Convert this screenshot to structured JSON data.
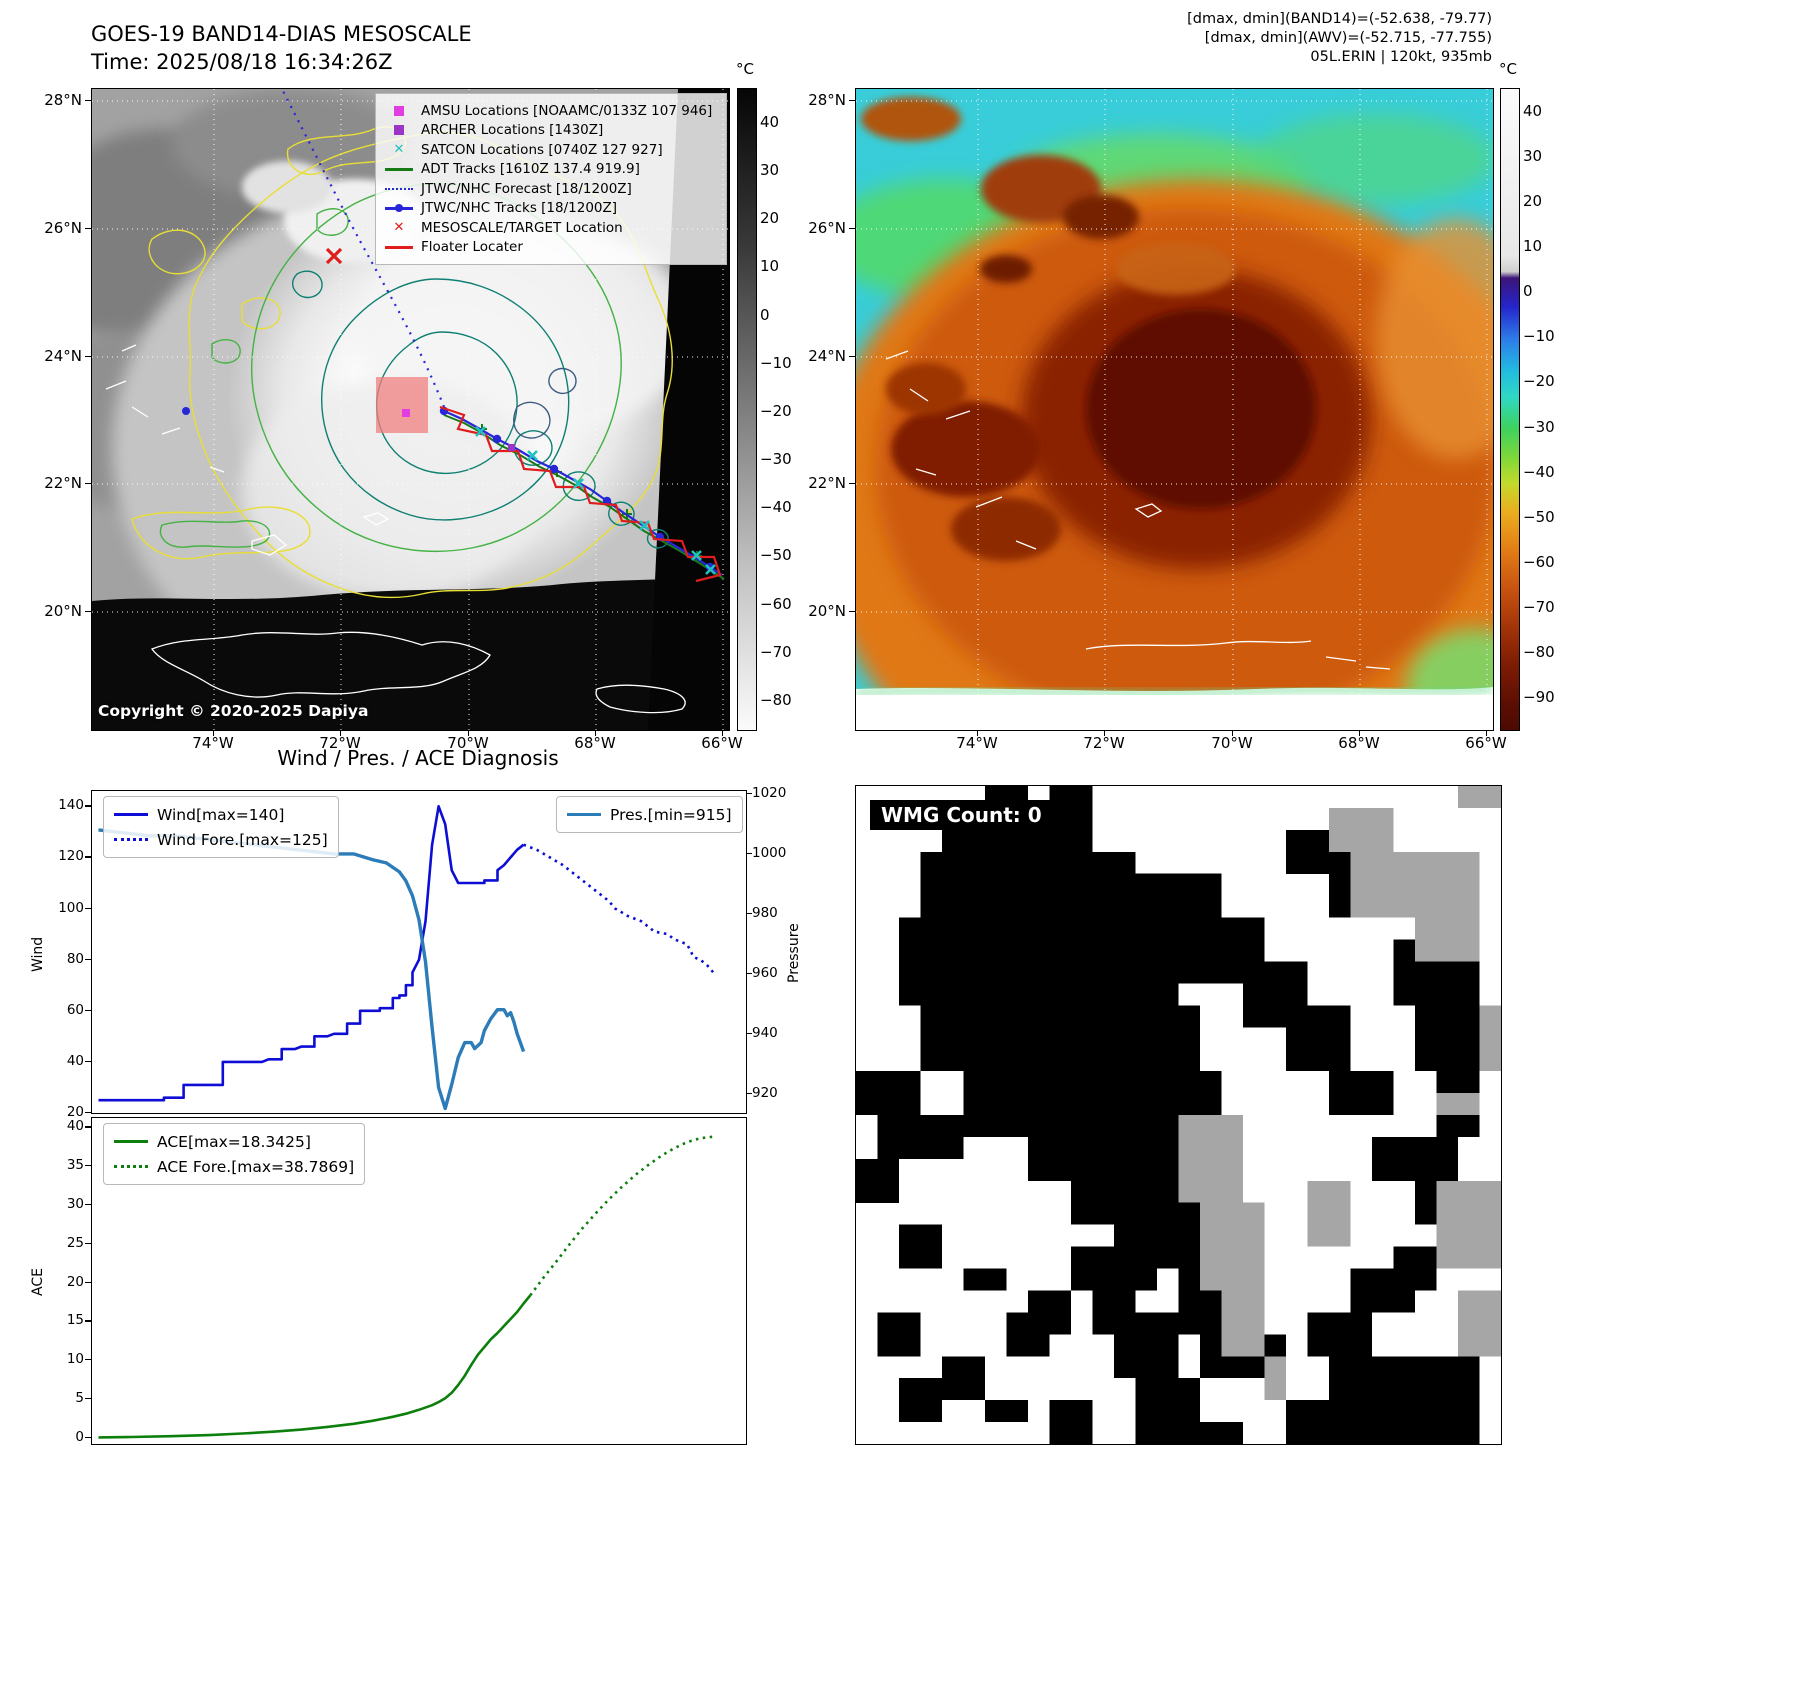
{
  "map_band14": {
    "title_line1": "GOES-19 BAND14-DIAS MESOSCALE",
    "title_line2": "Time: 2025/08/18 16:34:26Z",
    "copyright": "Copyright © 2020-2025 Dapiya",
    "lat_ticks": [
      "28°N",
      "26°N",
      "24°N",
      "22°N",
      "20°N"
    ],
    "lon_ticks": [
      "74°W",
      "72°W",
      "70°W",
      "68°W",
      "66°W"
    ],
    "colorbar": {
      "unit": "°C",
      "ticks": [
        40,
        30,
        20,
        10,
        0,
        -10,
        -20,
        -30,
        -40,
        -50,
        -60,
        -70,
        -80
      ]
    },
    "legend": [
      {
        "marker": "square",
        "color": "#e23de2",
        "label": "AMSU Locations [NOAAMC/0133Z 107 946]"
      },
      {
        "marker": "square",
        "color": "#9a35c8",
        "label": "ARCHER Locations [1430Z]"
      },
      {
        "marker": "x",
        "color": "#1fc2c2",
        "label": "SATCON Locations [0740Z 127 927]"
      },
      {
        "marker": "line",
        "color": "#167a16",
        "label": "ADT Tracks [1610Z 137.4 919.9]"
      },
      {
        "marker": "dotted",
        "color": "#2727d8",
        "label": "JTWC/NHC Forecast [18/1200Z]"
      },
      {
        "marker": "line-dot",
        "color": "#2727d8",
        "label": "JTWC/NHC Tracks [18/1200Z]"
      },
      {
        "marker": "x",
        "color": "#e01c1c",
        "label": "MESOSCALE/TARGET Location"
      },
      {
        "marker": "line",
        "color": "#e01c1c",
        "label": "Floater Locater"
      }
    ]
  },
  "map_awv": {
    "header_line1": "[dmax, dmin](BAND14)=(-52.638, -79.77)",
    "header_line2": "[dmax, dmin](AWV)=(-52.715, -77.755)",
    "header_line3": "05L.ERIN | 120kt, 935mb",
    "lat_ticks": [
      "28°N",
      "26°N",
      "24°N",
      "22°N",
      "20°N"
    ],
    "lon_ticks": [
      "74°W",
      "72°W",
      "70°W",
      "68°W",
      "66°W"
    ],
    "colorbar": {
      "unit": "°C",
      "ticks": [
        40,
        30,
        20,
        10,
        0,
        -10,
        -20,
        -30,
        -40,
        -50,
        -60,
        -70,
        -80,
        -90
      ]
    }
  },
  "wmg": {
    "label": "WMG Count: 0",
    "colors": {
      "black": "#000000",
      "gray": "#a6a6a6",
      "white": "#ffffff"
    }
  },
  "chart_data": [
    {
      "type": "line",
      "title": "Wind / Pres. / ACE Diagnosis",
      "xlabel": "",
      "ylabel": "Wind",
      "y2label": "Pressure",
      "ylim": [
        20,
        146
      ],
      "y2lim": [
        913.5,
        1021
      ],
      "yticks": [
        20,
        40,
        60,
        80,
        100,
        120,
        140
      ],
      "y2ticks": [
        920,
        940,
        960,
        980,
        1000,
        1020
      ],
      "legend_position": "upper left and upper right",
      "series": [
        {
          "name": "Wind[max=140]",
          "axis": "y",
          "style": "solid",
          "color": "#0d0dd6",
          "width": 2.6,
          "points": [
            [
              1,
              25
            ],
            [
              11,
              25
            ],
            [
              11,
              26
            ],
            [
              14,
              26
            ],
            [
              14,
              31
            ],
            [
              20,
              31
            ],
            [
              20,
              40
            ],
            [
              26,
              40
            ],
            [
              27,
              41
            ],
            [
              29,
              41
            ],
            [
              29,
              45
            ],
            [
              31,
              45
            ],
            [
              32,
              46
            ],
            [
              34,
              46
            ],
            [
              34,
              50
            ],
            [
              36,
              50
            ],
            [
              37,
              51
            ],
            [
              39,
              51
            ],
            [
              39,
              55
            ],
            [
              41,
              55
            ],
            [
              41,
              60
            ],
            [
              44,
              60
            ],
            [
              44,
              61
            ],
            [
              46,
              61
            ],
            [
              46,
              65
            ],
            [
              47,
              65
            ],
            [
              47,
              66
            ],
            [
              48,
              66
            ],
            [
              48,
              70
            ],
            [
              49,
              70
            ],
            [
              49,
              75
            ],
            [
              50,
              80
            ],
            [
              51,
              95
            ],
            [
              52,
              125
            ],
            [
              53,
              140
            ],
            [
              54,
              133
            ],
            [
              55,
              115
            ],
            [
              56,
              110
            ],
            [
              60,
              110
            ],
            [
              60,
              111
            ],
            [
              62,
              111
            ],
            [
              62,
              115
            ],
            [
              63,
              117
            ],
            [
              64,
              120
            ],
            [
              65,
              123
            ],
            [
              66,
              125
            ]
          ]
        },
        {
          "name": "Wind Fore.[max=125]",
          "axis": "y",
          "style": "dotted",
          "color": "#0d0dd6",
          "width": 2.6,
          "points": [
            [
              66,
              125
            ],
            [
              68,
              123
            ],
            [
              70,
              120
            ],
            [
              72,
              117
            ],
            [
              73,
              115
            ],
            [
              75,
              111
            ],
            [
              77,
              107
            ],
            [
              79,
              103
            ],
            [
              80,
              100
            ],
            [
              82,
              97
            ],
            [
              84,
              95
            ],
            [
              85,
              93
            ],
            [
              86,
              91
            ],
            [
              88,
              90
            ],
            [
              89,
              88
            ],
            [
              90,
              87
            ],
            [
              91,
              86
            ],
            [
              92,
              81
            ],
            [
              93,
              80
            ],
            [
              94,
              78
            ],
            [
              95,
              75
            ]
          ]
        },
        {
          "name": "Pres.[min=915]",
          "axis": "y2",
          "style": "solid",
          "color": "#2b7cb8",
          "width": 3.4,
          "points": [
            [
              1,
              1008
            ],
            [
              5,
              1007
            ],
            [
              9,
              1006
            ],
            [
              13,
              1006
            ],
            [
              17,
              1005
            ],
            [
              21,
              1004
            ],
            [
              25,
              1003
            ],
            [
              29,
              1002
            ],
            [
              33,
              1001
            ],
            [
              37,
              1000
            ],
            [
              40,
              1000
            ],
            [
              43,
              998
            ],
            [
              45,
              997
            ],
            [
              47,
              994
            ],
            [
              48,
              991
            ],
            [
              49,
              986
            ],
            [
              50,
              978
            ],
            [
              51,
              964
            ],
            [
              52,
              942
            ],
            [
              53,
              922
            ],
            [
              54,
              915
            ],
            [
              55,
              923
            ],
            [
              56,
              932
            ],
            [
              57,
              937
            ],
            [
              58,
              937
            ],
            [
              58.5,
              935
            ],
            [
              59.5,
              937
            ],
            [
              60,
              941
            ],
            [
              61,
              945
            ],
            [
              62,
              948
            ],
            [
              63,
              948
            ],
            [
              63.5,
              946
            ],
            [
              64,
              947
            ],
            [
              64.5,
              944
            ],
            [
              65,
              940
            ],
            [
              66,
              934
            ]
          ]
        }
      ]
    },
    {
      "type": "line",
      "xlabel": "",
      "ylabel": "ACE",
      "ylim": [
        -0.8,
        41.2
      ],
      "yticks": [
        0,
        5,
        10,
        15,
        20,
        25,
        30,
        35,
        40
      ],
      "legend_position": "upper left",
      "series": [
        {
          "name": "ACE[max=18.3425]",
          "axis": "y",
          "style": "solid",
          "color": "#0c7f0c",
          "width": 2.6,
          "points": [
            [
              1,
              0.05
            ],
            [
              6,
              0.1
            ],
            [
              12,
              0.2
            ],
            [
              18,
              0.35
            ],
            [
              23,
              0.55
            ],
            [
              28,
              0.8
            ],
            [
              32,
              1.05
            ],
            [
              36,
              1.4
            ],
            [
              40,
              1.8
            ],
            [
              43,
              2.2
            ],
            [
              46,
              2.7
            ],
            [
              48,
              3.1
            ],
            [
              50,
              3.6
            ],
            [
              52,
              4.2
            ],
            [
              53,
              4.6
            ],
            [
              54,
              5.1
            ],
            [
              55,
              5.8
            ],
            [
              56,
              6.8
            ],
            [
              57,
              8
            ],
            [
              58,
              9.4
            ],
            [
              59,
              10.7
            ],
            [
              60,
              11.7
            ],
            [
              61,
              12.7
            ],
            [
              62,
              13.5
            ],
            [
              63,
              14.4
            ],
            [
              64,
              15.3
            ],
            [
              65,
              16.2
            ],
            [
              66,
              17.3
            ],
            [
              67,
              18.34
            ]
          ]
        },
        {
          "name": "ACE Fore.[max=38.7869]",
          "axis": "y",
          "style": "dotted",
          "color": "#0c7f0c",
          "width": 2.6,
          "points": [
            [
              67,
              18.34
            ],
            [
              69,
              20.6
            ],
            [
              71,
              22.7
            ],
            [
              73,
              24.9
            ],
            [
              75,
              27
            ],
            [
              77,
              28.9
            ],
            [
              79,
              30.7
            ],
            [
              81,
              32.3
            ],
            [
              83,
              33.8
            ],
            [
              85,
              35.1
            ],
            [
              87,
              36.3
            ],
            [
              89,
              37.3
            ],
            [
              91,
              38.1
            ],
            [
              93,
              38.6
            ],
            [
              95,
              38.79
            ]
          ]
        }
      ]
    }
  ]
}
